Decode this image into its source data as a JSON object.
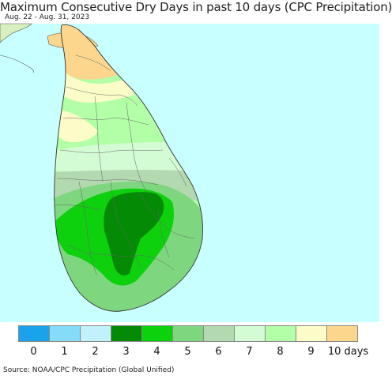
{
  "title": "Maximum Consecutive Dry Days in past 10 days (CPC Precipitation)",
  "subtitle": "Aug. 22 - Aug. 31, 2023",
  "source": "Source: NOAA/CPC Precipitation (Global Unified)",
  "map": {
    "region": "Sri Lanka",
    "ocean_color": "#c8ffff",
    "outside_land_color": "#d8f0c0",
    "border_color": "#555555"
  },
  "legend": {
    "items": [
      {
        "label": "0",
        "color": "#1aa3ea"
      },
      {
        "label": "1",
        "color": "#84dcf8"
      },
      {
        "label": "2",
        "color": "#c2f0fb"
      },
      {
        "label": "3",
        "color": "#048a04"
      },
      {
        "label": "4",
        "color": "#0ed10e"
      },
      {
        "label": "5",
        "color": "#7ed77e"
      },
      {
        "label": "6",
        "color": "#b3d9b0"
      },
      {
        "label": "7",
        "color": "#d4fcd4"
      },
      {
        "label": "8",
        "color": "#b3ffa8"
      },
      {
        "label": "9",
        "color": "#fcfcc8"
      },
      {
        "label": "10 days",
        "color": "#fcd68c"
      }
    ]
  }
}
